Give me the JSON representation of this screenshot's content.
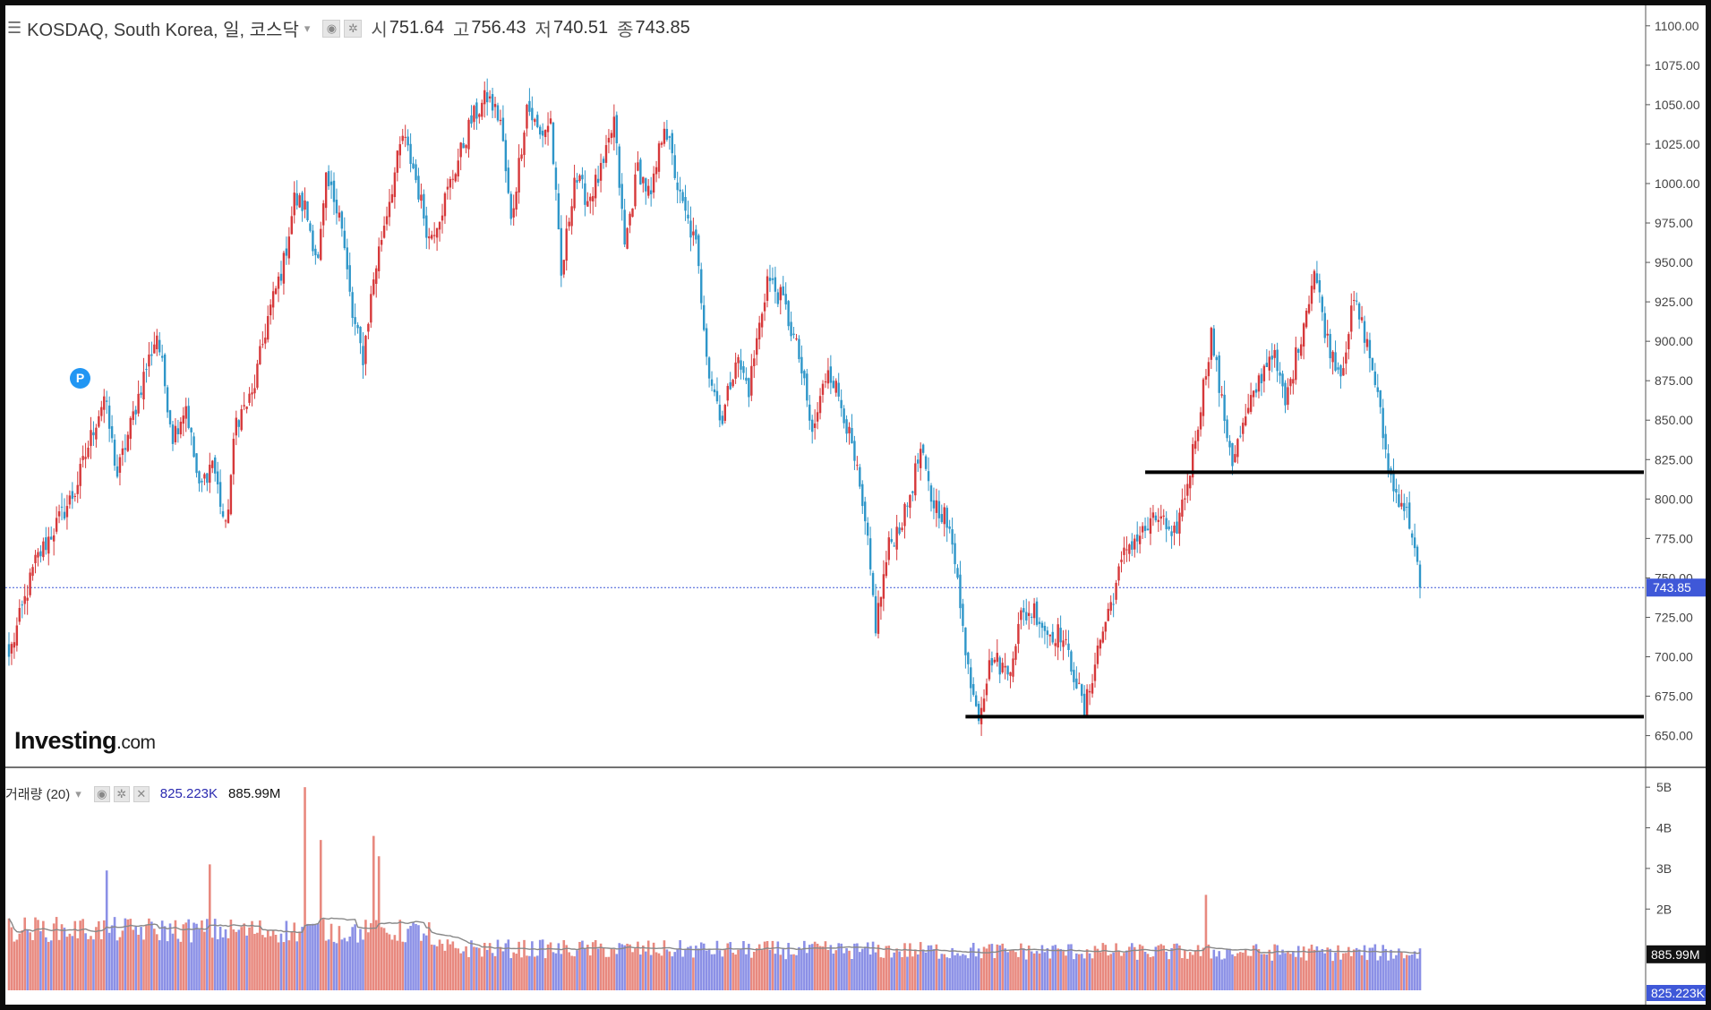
{
  "header": {
    "menu_icon": "menu-icon",
    "symbol": "KOSDAQ, South Korea, 일, 코스닥",
    "open_label": "시",
    "open": "751.64",
    "high_label": "고",
    "high": "756.43",
    "low_label": "저",
    "low": "740.51",
    "close_label": "종",
    "close": "743.85"
  },
  "volume_header": {
    "label": "거래량 (20)",
    "value1": "825.223K",
    "value2": "885.99M"
  },
  "logo": {
    "main": "Investing",
    "suffix": ".com"
  },
  "marker": "P",
  "colors": {
    "up": "#d6383a",
    "down": "#2e96c9",
    "vol_up": "#e8897f",
    "vol_down": "#8b90e6",
    "last_tag": "#3f58d8",
    "ma_tag": "#111111"
  },
  "chart_data": [
    {
      "type": "candlestick",
      "series_name": "KOSDAQ",
      "ylim": [
        635,
        1105
      ],
      "y_ticks": [
        "1100.00",
        "1075.00",
        "1050.00",
        "1025.00",
        "1000.00",
        "975.00",
        "950.00",
        "925.00",
        "900.00",
        "875.00",
        "850.00",
        "825.00",
        "800.00",
        "775.00",
        "750.00",
        "725.00",
        "700.00",
        "675.00",
        "650.00"
      ],
      "last_price": "743.85",
      "anchors": [
        {
          "i": 0,
          "v": 700
        },
        {
          "i": 10,
          "v": 760
        },
        {
          "i": 25,
          "v": 805
        },
        {
          "i": 32,
          "v": 845
        },
        {
          "i": 36,
          "v": 865
        },
        {
          "i": 41,
          "v": 815
        },
        {
          "i": 51,
          "v": 878
        },
        {
          "i": 56,
          "v": 905
        },
        {
          "i": 62,
          "v": 840
        },
        {
          "i": 67,
          "v": 860
        },
        {
          "i": 72,
          "v": 805
        },
        {
          "i": 77,
          "v": 825
        },
        {
          "i": 82,
          "v": 780
        },
        {
          "i": 86,
          "v": 850
        },
        {
          "i": 92,
          "v": 865
        },
        {
          "i": 98,
          "v": 915
        },
        {
          "i": 104,
          "v": 950
        },
        {
          "i": 108,
          "v": 990
        },
        {
          "i": 112,
          "v": 985
        },
        {
          "i": 117,
          "v": 950
        },
        {
          "i": 120,
          "v": 1000
        },
        {
          "i": 125,
          "v": 985
        },
        {
          "i": 130,
          "v": 915
        },
        {
          "i": 134,
          "v": 890
        },
        {
          "i": 138,
          "v": 940
        },
        {
          "i": 142,
          "v": 975
        },
        {
          "i": 149,
          "v": 1030
        },
        {
          "i": 153,
          "v": 1010
        },
        {
          "i": 159,
          "v": 965
        },
        {
          "i": 164,
          "v": 985
        },
        {
          "i": 169,
          "v": 1010
        },
        {
          "i": 175,
          "v": 1040
        },
        {
          "i": 181,
          "v": 1055
        },
        {
          "i": 186,
          "v": 1040
        },
        {
          "i": 190,
          "v": 975
        },
        {
          "i": 196,
          "v": 1050
        },
        {
          "i": 201,
          "v": 1030
        },
        {
          "i": 205,
          "v": 1040
        },
        {
          "i": 209,
          "v": 940
        },
        {
          "i": 214,
          "v": 1005
        },
        {
          "i": 219,
          "v": 990
        },
        {
          "i": 225,
          "v": 1010
        },
        {
          "i": 229,
          "v": 1040
        },
        {
          "i": 233,
          "v": 960
        },
        {
          "i": 238,
          "v": 1010
        },
        {
          "i": 243,
          "v": 990
        },
        {
          "i": 248,
          "v": 1040
        },
        {
          "i": 254,
          "v": 990
        },
        {
          "i": 260,
          "v": 960
        },
        {
          "i": 265,
          "v": 880
        },
        {
          "i": 270,
          "v": 850
        },
        {
          "i": 275,
          "v": 890
        },
        {
          "i": 280,
          "v": 870
        },
        {
          "i": 287,
          "v": 940
        },
        {
          "i": 293,
          "v": 925
        },
        {
          "i": 299,
          "v": 890
        },
        {
          "i": 304,
          "v": 840
        },
        {
          "i": 310,
          "v": 885
        },
        {
          "i": 316,
          "v": 855
        },
        {
          "i": 321,
          "v": 815
        },
        {
          "i": 325,
          "v": 770
        },
        {
          "i": 328,
          "v": 720
        },
        {
          "i": 333,
          "v": 770
        },
        {
          "i": 339,
          "v": 790
        },
        {
          "i": 345,
          "v": 830
        },
        {
          "i": 349,
          "v": 800
        },
        {
          "i": 354,
          "v": 790
        },
        {
          "i": 359,
          "v": 755
        },
        {
          "i": 362,
          "v": 700
        },
        {
          "i": 367,
          "v": 665
        },
        {
          "i": 372,
          "v": 700
        },
        {
          "i": 378,
          "v": 690
        },
        {
          "i": 383,
          "v": 725
        },
        {
          "i": 388,
          "v": 730
        },
        {
          "i": 393,
          "v": 715
        },
        {
          "i": 398,
          "v": 715
        },
        {
          "i": 403,
          "v": 690
        },
        {
          "i": 407,
          "v": 665
        },
        {
          "i": 412,
          "v": 705
        },
        {
          "i": 418,
          "v": 740
        },
        {
          "i": 423,
          "v": 770
        },
        {
          "i": 430,
          "v": 780
        },
        {
          "i": 436,
          "v": 790
        },
        {
          "i": 440,
          "v": 770
        },
        {
          "i": 446,
          "v": 810
        },
        {
          "i": 451,
          "v": 860
        },
        {
          "i": 455,
          "v": 905
        },
        {
          "i": 459,
          "v": 860
        },
        {
          "i": 463,
          "v": 825
        },
        {
          "i": 468,
          "v": 850
        },
        {
          "i": 473,
          "v": 875
        },
        {
          "i": 478,
          "v": 895
        },
        {
          "i": 483,
          "v": 860
        },
        {
          "i": 489,
          "v": 905
        },
        {
          "i": 494,
          "v": 945
        },
        {
          "i": 499,
          "v": 900
        },
        {
          "i": 504,
          "v": 880
        },
        {
          "i": 509,
          "v": 925
        },
        {
          "i": 513,
          "v": 905
        },
        {
          "i": 517,
          "v": 875
        },
        {
          "i": 521,
          "v": 830
        },
        {
          "i": 524,
          "v": 805
        },
        {
          "i": 527,
          "v": 800
        },
        {
          "i": 531,
          "v": 780
        },
        {
          "i": 534,
          "v": 743.85
        }
      ],
      "n_bars": 535,
      "support_lines": [
        {
          "value": 817,
          "from_index": 430
        },
        {
          "value": 662,
          "from_index": 362
        }
      ]
    },
    {
      "type": "bar",
      "series_name": "Volume",
      "ylim": [
        0,
        5400000000
      ],
      "y_ticks": [
        "5B",
        "4B",
        "3B",
        "2B"
      ],
      "ma_value_label": "885.99M",
      "last_value_label": "825.223K",
      "typical_range": [
        700000000,
        1600000000
      ],
      "peaks": [
        {
          "i": 112,
          "v": 5000000000
        },
        {
          "i": 118,
          "v": 3700000000
        },
        {
          "i": 138,
          "v": 3800000000
        },
        {
          "i": 140,
          "v": 3300000000
        },
        {
          "i": 76,
          "v": 3100000000
        },
        {
          "i": 37,
          "v": 2950000000
        },
        {
          "i": 453,
          "v": 2350000000
        }
      ]
    }
  ]
}
